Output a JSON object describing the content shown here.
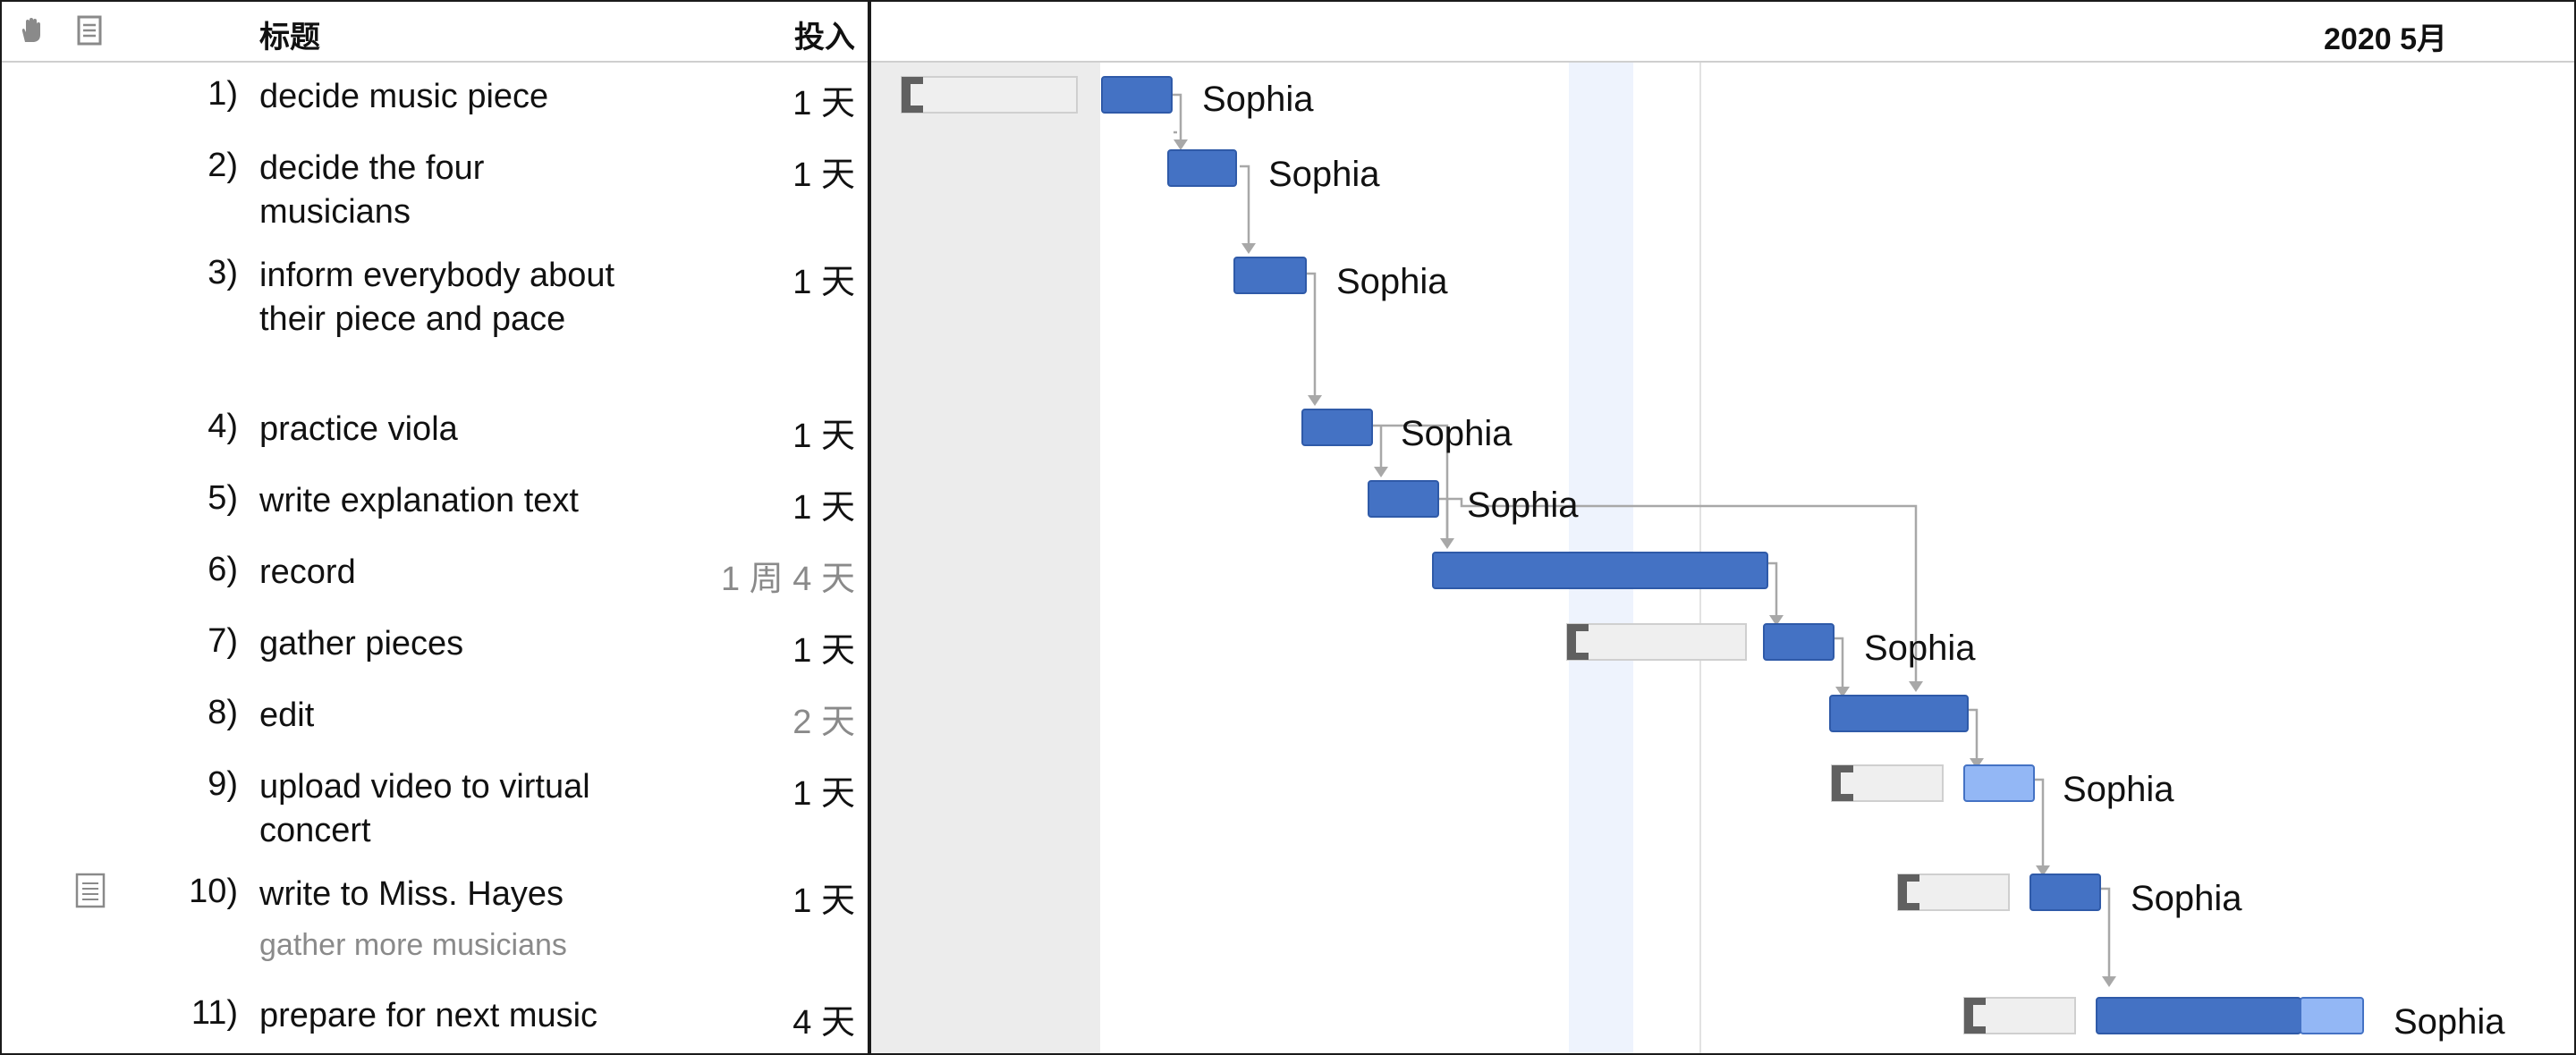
{
  "header": {
    "col_title": "标题",
    "col_effort": "投入",
    "hand_icon": "hand-icon",
    "notes_icon": "notes-icon"
  },
  "tasks": [
    {
      "num": "1)",
      "title": "decide music piece",
      "effort": "1 天",
      "assignee": "Sophia"
    },
    {
      "num": "2)",
      "title": "decide the four musicians",
      "effort": "1 天",
      "assignee": "Sophia"
    },
    {
      "num": "3)",
      "title": "inform everybody about their piece and pace",
      "effort": "1 天",
      "assignee": "Sophia"
    },
    {
      "num": "4)",
      "title": "practice viola",
      "effort": "1 天",
      "assignee": "Sophia"
    },
    {
      "num": "5)",
      "title": "write explanation text",
      "effort": "1 天",
      "assignee": "Sophia"
    },
    {
      "num": "6)",
      "title": "record",
      "effort": "1 周 4 天",
      "assignee": ""
    },
    {
      "num": "7)",
      "title": "gather pieces",
      "effort": "1 天",
      "assignee": "Sophia"
    },
    {
      "num": "8)",
      "title": "edit",
      "effort": "2 天",
      "assignee": ""
    },
    {
      "num": "9)",
      "title": "upload video to virtual concert",
      "effort": "1 天",
      "assignee": "Sophia"
    },
    {
      "num": "10)",
      "title": "write to Miss. Hayes",
      "effort": "1 天",
      "assignee": "Sophia",
      "note": "gather more musicians"
    },
    {
      "num": "11)",
      "title": "prepare for next music",
      "effort": "4 天",
      "assignee": "Sophia"
    }
  ],
  "gantt": {
    "month_label": "2020 5月",
    "colors": {
      "bar": "#4472c4",
      "bar_light": "#93b7f5",
      "slack": "#efefef",
      "connector": "#a8a8a8"
    }
  }
}
